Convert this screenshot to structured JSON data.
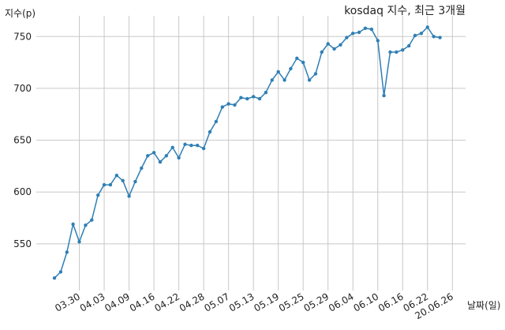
{
  "chart_data": {
    "type": "line",
    "title": "kosdaq 지수, 최근 3개월",
    "ylabel": "지수(p)",
    "xlabel": "날짜(일)",
    "ylim": [
      505,
      770
    ],
    "yticks": [
      550,
      600,
      650,
      700,
      750
    ],
    "xtick_labels": [
      "03.30",
      "04.03",
      "04.09",
      "04.16",
      "04.22",
      "04.28",
      "05.07",
      "05.13",
      "05.19",
      "05.25",
      "05.29",
      "06.04",
      "06.10",
      "06.16",
      "06.22",
      "20.06.26"
    ],
    "xtick_indices": [
      4,
      8,
      12,
      16,
      20,
      24,
      28,
      32,
      36,
      40,
      44,
      48,
      52,
      56,
      60,
      64
    ],
    "grid": true,
    "color": "#2f7fb5",
    "series": [
      {
        "values": [
          517,
          523,
          542,
          569,
          552,
          568,
          573,
          597,
          607,
          607,
          616,
          611,
          596,
          610,
          623,
          635,
          638,
          629,
          635,
          643,
          633,
          646,
          645,
          645,
          642,
          658,
          668,
          682,
          685,
          684,
          691,
          690,
          692,
          690,
          696,
          708,
          716,
          708,
          719,
          729,
          725,
          708,
          714,
          735,
          743,
          738,
          742,
          749,
          753,
          754,
          758,
          757,
          746,
          693,
          735,
          735,
          737,
          741,
          751,
          753,
          759,
          750,
          749
        ]
      }
    ]
  }
}
